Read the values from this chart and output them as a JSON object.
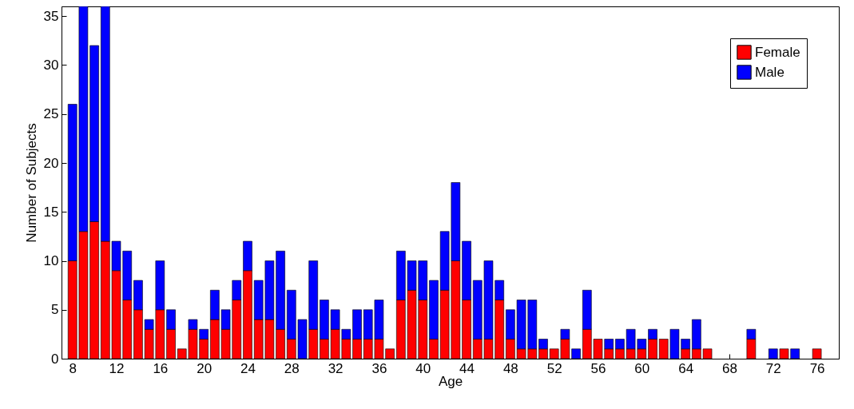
{
  "chart_data": {
    "type": "bar",
    "stacked": true,
    "xlabel": "Age",
    "ylabel": "Number of Subjects",
    "x": [
      8,
      9,
      10,
      11,
      12,
      13,
      14,
      15,
      16,
      17,
      18,
      19,
      20,
      21,
      22,
      23,
      24,
      25,
      26,
      27,
      28,
      29,
      30,
      31,
      32,
      33,
      34,
      35,
      36,
      37,
      38,
      39,
      40,
      41,
      42,
      43,
      44,
      45,
      46,
      47,
      48,
      49,
      50,
      51,
      52,
      53,
      54,
      55,
      56,
      57,
      58,
      59,
      60,
      61,
      62,
      63,
      64,
      65,
      66,
      67,
      68,
      69,
      70,
      71,
      72,
      73,
      74,
      75,
      76
    ],
    "series": [
      {
        "name": "Female",
        "color": "#ff0000",
        "values": [
          10,
          13,
          14,
          12,
          9,
          6,
          5,
          3,
          5,
          3,
          1,
          3,
          2,
          4,
          3,
          6,
          9,
          4,
          4,
          3,
          2,
          0,
          3,
          2,
          3,
          2,
          2,
          2,
          2,
          1,
          6,
          7,
          6,
          2,
          7,
          10,
          6,
          2,
          2,
          6,
          2,
          1,
          1,
          1,
          1,
          2,
          0,
          3,
          2,
          1,
          1,
          1,
          1,
          2,
          2,
          0,
          1,
          1,
          1,
          0,
          0,
          0,
          2,
          0,
          0,
          1,
          0,
          0,
          1
        ]
      },
      {
        "name": "Male",
        "color": "#0000ff",
        "values": [
          16,
          23,
          18,
          24,
          3,
          5,
          3,
          1,
          5,
          2,
          0,
          1,
          1,
          3,
          2,
          2,
          3,
          4,
          6,
          8,
          5,
          4,
          7,
          4,
          2,
          1,
          3,
          3,
          4,
          0,
          5,
          3,
          4,
          6,
          6,
          8,
          6,
          6,
          8,
          2,
          3,
          5,
          5,
          1,
          0,
          1,
          1,
          4,
          0,
          1,
          1,
          2,
          1,
          1,
          0,
          3,
          1,
          3,
          0,
          0,
          0,
          0,
          1,
          0,
          1,
          0,
          1,
          0,
          0
        ]
      }
    ],
    "xlim": [
      7,
      78
    ],
    "xticks": [
      8,
      12,
      16,
      20,
      24,
      28,
      32,
      36,
      40,
      44,
      48,
      52,
      56,
      60,
      64,
      68,
      72,
      76
    ],
    "ylim": [
      0,
      36
    ],
    "yticks": [
      0,
      5,
      10,
      15,
      20,
      25,
      30,
      35
    ],
    "grid": false,
    "legend": "top right"
  }
}
